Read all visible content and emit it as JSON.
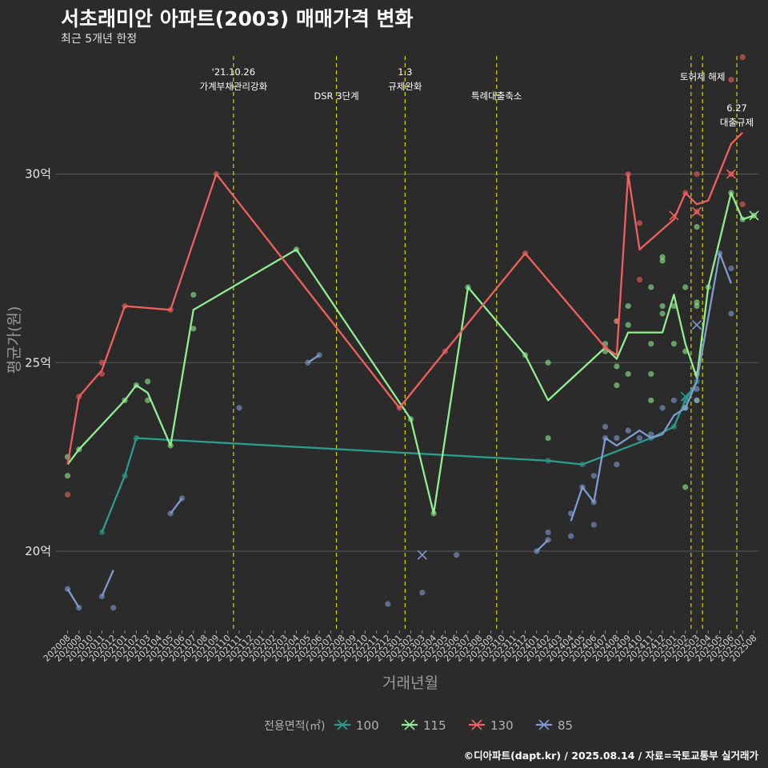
{
  "header": {
    "title": "서초래미안 아파트(2003) 매매가격 변화",
    "subtitle": "최근 5개년 한정"
  },
  "caption": "©디아파트(dapt.kr) / 2025.08.14 / 자료=국토교통부 실거래가",
  "colors": {
    "background": "#2b2b2b",
    "grid": "#5a5a5a",
    "vline": "#d6d600",
    "s100": "#2a9d8f",
    "s115": "#90ee90",
    "s130": "#f0605d",
    "s85": "#7f9bd0"
  },
  "chart_data": {
    "type": "line",
    "xlabel": "거래년월",
    "ylabel": "평균가(원)",
    "ylim": [
      17.9,
      33.3
    ],
    "y_ticks": [
      {
        "value": 20,
        "label": "20억"
      },
      {
        "value": 25,
        "label": "25억"
      },
      {
        "value": 30,
        "label": "30억"
      }
    ],
    "x_categories": [
      "202008",
      "202009",
      "202010",
      "202011",
      "202012",
      "202101",
      "202102",
      "202103",
      "202104",
      "202105",
      "202106",
      "202107",
      "202108",
      "202109",
      "202110",
      "202111",
      "202112",
      "202201",
      "202202",
      "202203",
      "202204",
      "202205",
      "202206",
      "202207",
      "202208",
      "202209",
      "202210",
      "202211",
      "202212",
      "202301",
      "202302",
      "202303",
      "202304",
      "202305",
      "202306",
      "202307",
      "202308",
      "202309",
      "202310",
      "202311",
      "202312",
      "202401",
      "202402",
      "202403",
      "202404",
      "202405",
      "202406",
      "202407",
      "202408",
      "202409",
      "202410",
      "202411",
      "202412",
      "202501",
      "202502",
      "202503",
      "202504",
      "202505",
      "202506",
      "202507",
      "202508"
    ],
    "grid": true,
    "legend": {
      "title": "전용면적(㎡)",
      "position": "bottom",
      "items": [
        "100",
        "115",
        "130",
        "85"
      ]
    },
    "annotations": [
      {
        "x": 14.5,
        "lines": [
          "'21.10.26",
          "가계부채관리강화"
        ],
        "row": 0
      },
      {
        "x": 23.5,
        "lines": [
          "DSR 3단계"
        ],
        "row": 1
      },
      {
        "x": 29.5,
        "lines": [
          "1.3",
          "규제완화"
        ],
        "row": 0
      },
      {
        "x": 37.5,
        "lines": [
          "특례대출축소"
        ],
        "row": 1
      },
      {
        "x": 54.5,
        "lines": [
          "토허제 해제"
        ],
        "row": 0.2,
        "text_x": 55.5
      },
      {
        "x": 55.5,
        "lines": [],
        "row": 0
      },
      {
        "x": 58.5,
        "lines": [
          "6.27",
          "대출규제"
        ],
        "row": 1.5
      }
    ],
    "series": [
      {
        "name": "100",
        "color": "#2a9d8f",
        "line": [
          [
            3,
            20.5
          ],
          [
            5,
            22.0
          ],
          [
            6,
            23.0
          ],
          [
            42,
            22.4
          ],
          [
            45,
            22.3
          ],
          [
            51,
            23.0
          ],
          [
            53,
            23.3
          ],
          [
            54,
            24.0
          ],
          [
            55,
            24.5
          ]
        ],
        "points": [
          [
            3,
            20.5
          ],
          [
            5,
            22.0
          ],
          [
            6,
            23.0
          ],
          [
            42,
            22.4
          ],
          [
            45,
            22.3
          ],
          [
            51,
            23.0
          ],
          [
            53,
            23.3
          ],
          [
            54,
            24.0
          ],
          [
            55,
            24.5
          ]
        ],
        "cross": [
          [
            54,
            24.1
          ]
        ]
      },
      {
        "name": "115",
        "color": "#90ee90",
        "line": [
          [
            0,
            22.3
          ],
          [
            1,
            22.7
          ],
          [
            5,
            24.0
          ],
          [
            6,
            24.4
          ],
          [
            7,
            24.2
          ],
          [
            9,
            22.8
          ],
          [
            11,
            26.4
          ],
          [
            20,
            28.0
          ],
          [
            30,
            23.5
          ],
          [
            32,
            21.0
          ],
          [
            35,
            27.0
          ],
          [
            40,
            25.2
          ],
          [
            42,
            24.0
          ],
          [
            47,
            25.4
          ],
          [
            48,
            25.1
          ],
          [
            49,
            25.8
          ],
          [
            52,
            25.8
          ],
          [
            53,
            26.8
          ],
          [
            54,
            25.5
          ],
          [
            55,
            24.6
          ],
          [
            56,
            27.0
          ],
          [
            58,
            29.5
          ],
          [
            59,
            28.8
          ],
          [
            60,
            28.9
          ]
        ],
        "points": [
          [
            0,
            22.5
          ],
          [
            0,
            22.0
          ],
          [
            1,
            22.7
          ],
          [
            5,
            24.0
          ],
          [
            6,
            24.4
          ],
          [
            7,
            24.5
          ],
          [
            7,
            24.0
          ],
          [
            9,
            22.8
          ],
          [
            11,
            26.8
          ],
          [
            11,
            25.9
          ],
          [
            20,
            28.0
          ],
          [
            30,
            23.5
          ],
          [
            32,
            21.0
          ],
          [
            35,
            27.0
          ],
          [
            40,
            25.2
          ],
          [
            42,
            25.0
          ],
          [
            42,
            23.0
          ],
          [
            47,
            25.5
          ],
          [
            47,
            25.3
          ],
          [
            48,
            26.1
          ],
          [
            48,
            24.9
          ],
          [
            48,
            24.4
          ],
          [
            49,
            26.5
          ],
          [
            49,
            26.0
          ],
          [
            49,
            24.7
          ],
          [
            51,
            27.0
          ],
          [
            51,
            25.5
          ],
          [
            51,
            24.7
          ],
          [
            51,
            24.0
          ],
          [
            52,
            27.8
          ],
          [
            52,
            26.3
          ],
          [
            52,
            26.5
          ],
          [
            52,
            27.7
          ],
          [
            53,
            26.5
          ],
          [
            53,
            25.5
          ],
          [
            54,
            27.0
          ],
          [
            54,
            25.3
          ],
          [
            54,
            23.8
          ],
          [
            54,
            21.7
          ],
          [
            55,
            26.6
          ],
          [
            55,
            26.5
          ],
          [
            55,
            24.7
          ],
          [
            55,
            24.0
          ],
          [
            55,
            28.6
          ],
          [
            56,
            27.0
          ],
          [
            58,
            29.5
          ],
          [
            59,
            28.8
          ],
          [
            60,
            28.9
          ]
        ],
        "cross": [
          [
            60,
            28.9
          ]
        ]
      },
      {
        "name": "130",
        "color": "#f0605d",
        "line": [
          [
            0,
            22.3
          ],
          [
            1,
            24.1
          ],
          [
            3,
            24.8
          ],
          [
            5,
            26.5
          ],
          [
            9,
            26.4
          ],
          [
            13,
            30.0
          ],
          [
            29,
            23.8
          ],
          [
            33,
            25.3
          ],
          [
            40,
            27.9
          ],
          [
            47,
            25.4
          ],
          [
            48,
            25.2
          ],
          [
            49,
            30.0
          ],
          [
            50,
            28.0
          ],
          [
            53,
            28.8
          ],
          [
            54,
            29.5
          ],
          [
            55,
            29.2
          ],
          [
            56,
            29.3
          ],
          [
            58,
            30.8
          ],
          [
            59,
            31.1
          ]
        ],
        "points": [
          [
            0,
            21.5
          ],
          [
            1,
            24.1
          ],
          [
            3,
            25.0
          ],
          [
            3,
            24.7
          ],
          [
            5,
            26.5
          ],
          [
            9,
            26.4
          ],
          [
            13,
            30.0
          ],
          [
            29,
            23.8
          ],
          [
            33,
            25.3
          ],
          [
            40,
            27.9
          ],
          [
            47,
            25.4
          ],
          [
            48,
            26.1
          ],
          [
            49,
            30.0
          ],
          [
            50,
            28.7
          ],
          [
            50,
            27.2
          ],
          [
            54,
            29.5
          ],
          [
            55,
            30.0
          ],
          [
            55,
            29.0
          ],
          [
            58,
            30.0
          ],
          [
            58,
            32.5
          ],
          [
            59,
            33.1
          ],
          [
            59,
            29.2
          ]
        ],
        "cross": [
          [
            53,
            28.9
          ],
          [
            55,
            29.0
          ],
          [
            58,
            30.0
          ]
        ]
      },
      {
        "name": "85",
        "color": "#7f9bd0",
        "line_segments": [
          [
            [
              0,
              19.0
            ],
            [
              1,
              18.5
            ]
          ],
          [
            [
              3,
              18.8
            ],
            [
              4,
              19.5
            ]
          ],
          [
            [
              9,
              21.0
            ],
            [
              10,
              21.4
            ]
          ],
          [
            [
              21,
              25.0
            ],
            [
              22,
              25.2
            ]
          ],
          [
            [
              41,
              20.0
            ],
            [
              42,
              20.3
            ]
          ],
          [
            [
              44,
              20.8
            ],
            [
              45,
              21.7
            ],
            [
              46,
              21.3
            ],
            [
              47,
              23.0
            ],
            [
              48,
              22.8
            ],
            [
              49,
              23.0
            ],
            [
              50,
              23.2
            ],
            [
              51,
              23.0
            ],
            [
              52,
              23.1
            ],
            [
              53,
              23.6
            ],
            [
              54,
              23.8
            ],
            [
              55,
              24.5
            ],
            [
              57,
              27.9
            ],
            [
              58,
              27.1
            ]
          ]
        ],
        "points": [
          [
            0,
            19.0
          ],
          [
            1,
            18.5
          ],
          [
            3,
            18.8
          ],
          [
            4,
            18.5
          ],
          [
            9,
            21.0
          ],
          [
            10,
            21.4
          ],
          [
            15,
            23.8
          ],
          [
            21,
            25.0
          ],
          [
            22,
            25.2
          ],
          [
            28,
            18.6
          ],
          [
            31,
            18.9
          ],
          [
            34,
            19.9
          ],
          [
            41,
            20.0
          ],
          [
            42,
            20.5
          ],
          [
            42,
            20.3
          ],
          [
            44,
            21.0
          ],
          [
            44,
            20.4
          ],
          [
            45,
            21.7
          ],
          [
            46,
            22.0
          ],
          [
            46,
            20.7
          ],
          [
            46,
            21.3
          ],
          [
            47,
            23.3
          ],
          [
            47,
            23.0
          ],
          [
            48,
            22.3
          ],
          [
            48,
            23.0
          ],
          [
            49,
            23.2
          ],
          [
            50,
            23.0
          ],
          [
            51,
            23.1
          ],
          [
            52,
            23.8
          ],
          [
            53,
            24.0
          ],
          [
            54,
            23.8
          ],
          [
            55,
            24.0
          ],
          [
            55,
            24.3
          ],
          [
            57,
            27.9
          ],
          [
            58,
            27.5
          ],
          [
            58,
            26.3
          ]
        ],
        "cross": [
          [
            31,
            19.9
          ],
          [
            55,
            26.0
          ]
        ]
      }
    ]
  }
}
